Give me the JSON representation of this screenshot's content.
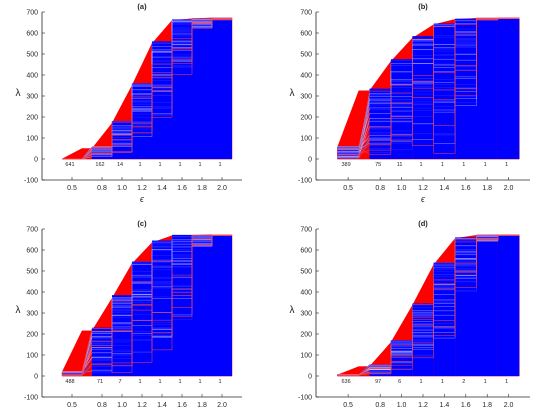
{
  "figure": {
    "panels": [
      {
        "id": "a",
        "title": "(a)",
        "counts": [
          "641",
          "162",
          "14",
          "1",
          "1",
          "1",
          "1",
          "1"
        ]
      },
      {
        "id": "b",
        "title": "(b)",
        "counts": [
          "389",
          "75",
          "11",
          "1",
          "1",
          "1",
          "1",
          "1"
        ]
      },
      {
        "id": "c",
        "title": "(c)",
        "counts": [
          "488",
          "71",
          "7",
          "1",
          "1",
          "1",
          "1",
          "1"
        ]
      },
      {
        "id": "d",
        "title": "(d)",
        "counts": [
          "636",
          "97",
          "6",
          "1",
          "1",
          "2",
          "1",
          "1"
        ]
      }
    ]
  },
  "chart_data": [
    {
      "type": "area",
      "title": "(a)",
      "xlabel": "ϵ",
      "ylabel": "λ",
      "x_ticks": [
        "0.5",
        "0.8",
        "1.0",
        "1.2",
        "1.4",
        "1.6",
        "1.8",
        "2.0"
      ],
      "y_ticks": [
        "-100",
        "0",
        "100",
        "200",
        "300",
        "400",
        "500",
        "600",
        "700"
      ],
      "ylim": [
        -100,
        700
      ],
      "xlim": [
        0.2,
        2.2
      ],
      "colors": {
        "blue": "#0000ff",
        "red": "#ff0000"
      },
      "count_labels": [
        "641",
        "162",
        "14",
        "1",
        "1",
        "1",
        "1",
        "1"
      ],
      "blue_level_max": [
        0,
        60,
        180,
        360,
        560,
        665,
        670,
        672
      ],
      "blue_level_min": [
        0,
        10,
        30,
        100,
        160,
        400,
        620,
        660
      ],
      "red_level": [
        0,
        50,
        170,
        350,
        550,
        660,
        668,
        672
      ]
    },
    {
      "type": "area",
      "title": "(b)",
      "xlabel": "ϵ",
      "ylabel": "λ",
      "x_ticks": [
        "0.5",
        "0.8",
        "1.0",
        "1.2",
        "1.4",
        "1.6",
        "1.8",
        "2.0"
      ],
      "y_ticks": [
        "-100",
        "0",
        "100",
        "200",
        "300",
        "400",
        "500",
        "600",
        "700"
      ],
      "ylim": [
        -100,
        700
      ],
      "xlim": [
        0.2,
        2.2
      ],
      "colors": {
        "blue": "#0000ff",
        "red": "#ff0000"
      },
      "count_labels": [
        "389",
        "75",
        "11",
        "1",
        "1",
        "1",
        "1",
        "1"
      ],
      "blue_level_max": [
        60,
        335,
        475,
        585,
        645,
        668,
        672,
        672
      ],
      "blue_level_min": [
        0,
        0,
        0,
        10,
        20,
        230,
        660,
        668
      ],
      "red_level": [
        55,
        325,
        465,
        575,
        640,
        665,
        670,
        672
      ]
    },
    {
      "type": "area",
      "title": "(c)",
      "xlabel": "ϵ",
      "ylabel": "λ",
      "x_ticks": [
        "0.5",
        "0.8",
        "1.0",
        "1.2",
        "1.4",
        "1.6",
        "1.8",
        "2.0"
      ],
      "y_ticks": [
        "-100",
        "0",
        "100",
        "200",
        "300",
        "400",
        "500",
        "600",
        "700"
      ],
      "ylim": [
        -100,
        700
      ],
      "xlim": [
        0.2,
        2.2
      ],
      "colors": {
        "blue": "#0000ff",
        "red": "#ff0000"
      },
      "count_labels": [
        "488",
        "71",
        "7",
        "1",
        "1",
        "1",
        "1",
        "1"
      ],
      "blue_level_max": [
        22,
        230,
        385,
        545,
        645,
        672,
        672,
        672
      ],
      "blue_level_min": [
        0,
        0,
        10,
        20,
        90,
        260,
        610,
        668
      ],
      "red_level": [
        18,
        215,
        370,
        535,
        635,
        668,
        670,
        672
      ]
    },
    {
      "type": "area",
      "title": "(d)",
      "xlabel": "ϵ",
      "ylabel": "λ",
      "x_ticks": [
        "0.5",
        "0.8",
        "1.0",
        "1.2",
        "1.4",
        "1.6",
        "1.8",
        "2.0"
      ],
      "y_ticks": [
        "-100",
        "0",
        "100",
        "200",
        "300",
        "400",
        "500",
        "600",
        "700"
      ],
      "ylim": [
        -100,
        700
      ],
      "xlim": [
        0.2,
        2.2
      ],
      "colors": {
        "blue": "#0000ff",
        "red": "#ff0000"
      },
      "count_labels": [
        "636",
        "97",
        "6",
        "1",
        "1",
        "2",
        "1",
        "1"
      ],
      "blue_level_max": [
        8,
        55,
        170,
        345,
        540,
        660,
        672,
        672
      ],
      "blue_level_min": [
        0,
        10,
        25,
        80,
        150,
        380,
        640,
        668
      ],
      "red_level": [
        5,
        45,
        160,
        335,
        530,
        655,
        670,
        672
      ]
    }
  ]
}
